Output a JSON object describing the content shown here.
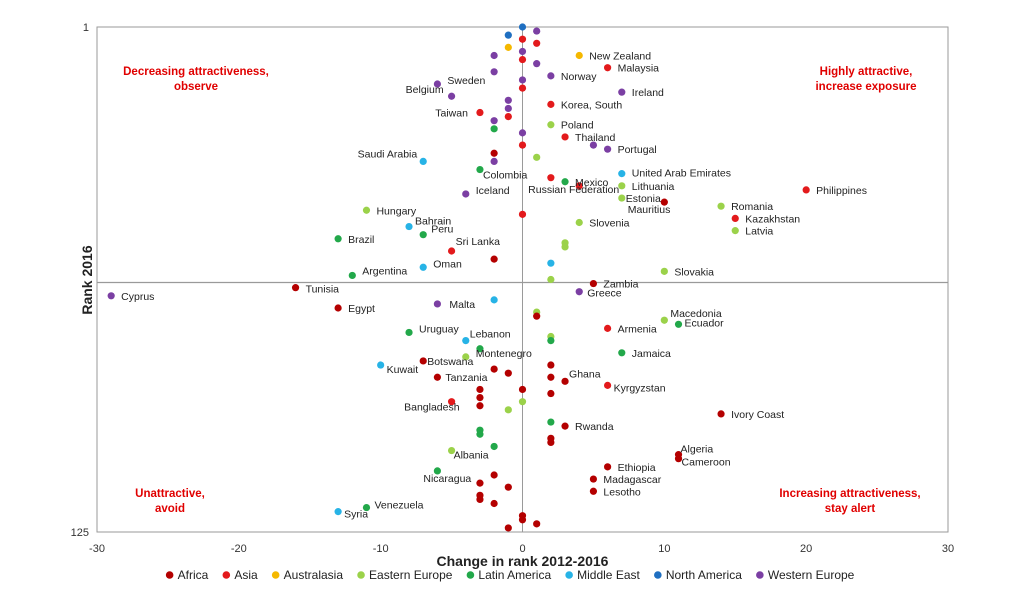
{
  "chart_data": {
    "type": "scatter",
    "xlabel": "Change in rank 2012-2016",
    "ylabel": "Rank 2016",
    "xlim": [
      -30,
      30
    ],
    "ylim": [
      1,
      125
    ],
    "y_inverted": true,
    "x_ticks": [
      "-30",
      "-20",
      "-10",
      "0",
      "10",
      "20",
      "30"
    ],
    "y_ticks": [
      "1",
      "125"
    ],
    "legend_position": "bottom",
    "quadrant_labels": [
      {
        "text": [
          "Decreasing attractiveness,",
          "observe"
        ],
        "position": "top-left"
      },
      {
        "text": [
          "Highly attractive,",
          "increase exposure"
        ],
        "position": "top-right"
      },
      {
        "text": [
          "Unattractive,",
          "avoid"
        ],
        "position": "bottom-left"
      },
      {
        "text": [
          "Increasing attractiveness,",
          "stay alert"
        ],
        "position": "bottom-right"
      }
    ],
    "series": [
      {
        "name": "Africa",
        "color": "#b40000"
      },
      {
        "name": "Asia",
        "color": "#e31a1c"
      },
      {
        "name": "Australasia",
        "color": "#f5b800"
      },
      {
        "name": "Eastern Europe",
        "color": "#9bd24a"
      },
      {
        "name": "Latin America",
        "color": "#22a84a"
      },
      {
        "name": "Middle East",
        "color": "#27b3e6"
      },
      {
        "name": "North America",
        "color": "#1f6fc1"
      },
      {
        "name": "Western Europe",
        "color": "#7b3fa3"
      }
    ],
    "points": [
      {
        "label": "New Zealand",
        "x": 4,
        "y": 8,
        "group": "Australasia"
      },
      {
        "label": "Malaysia",
        "x": 6,
        "y": 11,
        "group": "Asia"
      },
      {
        "label": "Norway",
        "x": 2,
        "y": 13,
        "group": "Western Europe"
      },
      {
        "label": "Sweden",
        "x": -6,
        "y": 15,
        "group": "Western Europe"
      },
      {
        "label": "Ireland",
        "x": 7,
        "y": 17,
        "group": "Western Europe"
      },
      {
        "label": "Belgium",
        "x": -5,
        "y": 18,
        "group": "Western Europe"
      },
      {
        "label": "Korea, South",
        "x": 2,
        "y": 20,
        "group": "Asia"
      },
      {
        "label": "Taiwan",
        "x": -3,
        "y": 22,
        "group": "Asia"
      },
      {
        "label": "Poland",
        "x": 2,
        "y": 25,
        "group": "Eastern Europe"
      },
      {
        "label": "Thailand",
        "x": 3,
        "y": 28,
        "group": "Asia"
      },
      {
        "label": "Portugal",
        "x": 6,
        "y": 31,
        "group": "Western Europe"
      },
      {
        "label": "Saudi Arabia",
        "x": -7,
        "y": 34,
        "group": "Middle East"
      },
      {
        "label": "United Arab Emirates",
        "x": 7,
        "y": 37,
        "group": "Middle East"
      },
      {
        "label": "Colombia",
        "x": -3,
        "y": 36,
        "group": "Latin America"
      },
      {
        "label": "Mexico",
        "x": 3,
        "y": 39,
        "group": "Latin America"
      },
      {
        "label": "Lithuania",
        "x": 7,
        "y": 40,
        "group": "Eastern Europe"
      },
      {
        "label": "Philippines",
        "x": 20,
        "y": 41,
        "group": "Asia"
      },
      {
        "label": "Russian Federation",
        "x": 4,
        "y": 40,
        "group": "Asia"
      },
      {
        "label": "Iceland",
        "x": -4,
        "y": 42,
        "group": "Western Europe"
      },
      {
        "label": "Estonia",
        "x": 7,
        "y": 43,
        "group": "Eastern Europe"
      },
      {
        "label": "Romania",
        "x": 14,
        "y": 45,
        "group": "Eastern Europe"
      },
      {
        "label": "Mauritius",
        "x": 10,
        "y": 44,
        "group": "Africa"
      },
      {
        "label": "Hungary",
        "x": -11,
        "y": 46,
        "group": "Eastern Europe"
      },
      {
        "label": "Kazakhstan",
        "x": 15,
        "y": 48,
        "group": "Asia"
      },
      {
        "label": "Slovenia",
        "x": 4,
        "y": 49,
        "group": "Eastern Europe"
      },
      {
        "label": "Bahrain",
        "x": -8,
        "y": 50,
        "group": "Middle East"
      },
      {
        "label": "Latvia",
        "x": 15,
        "y": 51,
        "group": "Eastern Europe"
      },
      {
        "label": "Peru",
        "x": -7,
        "y": 52,
        "group": "Latin America"
      },
      {
        "label": "Brazil",
        "x": -13,
        "y": 53,
        "group": "Latin America"
      },
      {
        "label": "Sri Lanka",
        "x": -5,
        "y": 56,
        "group": "Asia"
      },
      {
        "label": "Oman",
        "x": -7,
        "y": 60,
        "group": "Middle East"
      },
      {
        "label": "Slovakia",
        "x": 10,
        "y": 61,
        "group": "Eastern Europe"
      },
      {
        "label": "Argentina",
        "x": -12,
        "y": 62,
        "group": "Latin America"
      },
      {
        "label": "Zambia",
        "x": 5,
        "y": 64,
        "group": "Africa"
      },
      {
        "label": "Tunisia",
        "x": -16,
        "y": 65,
        "group": "Africa"
      },
      {
        "label": "Greece",
        "x": 4,
        "y": 66,
        "group": "Western Europe"
      },
      {
        "label": "Cyprus",
        "x": -29,
        "y": 67,
        "group": "Western Europe"
      },
      {
        "label": "Malta",
        "x": -6,
        "y": 69,
        "group": "Western Europe"
      },
      {
        "label": "Egypt",
        "x": -13,
        "y": 70,
        "group": "Africa"
      },
      {
        "label": "Macedonia",
        "x": 10,
        "y": 73,
        "group": "Eastern Europe"
      },
      {
        "label": "Ecuador",
        "x": 11,
        "y": 74,
        "group": "Latin America"
      },
      {
        "label": "Armenia",
        "x": 6,
        "y": 75,
        "group": "Asia"
      },
      {
        "label": "Uruguay",
        "x": -8,
        "y": 76,
        "group": "Latin America"
      },
      {
        "label": "Lebanon",
        "x": -4,
        "y": 78,
        "group": "Middle East"
      },
      {
        "label": "Jamaica",
        "x": 7,
        "y": 81,
        "group": "Latin America"
      },
      {
        "label": "Montenegro",
        "x": -4,
        "y": 82,
        "group": "Eastern Europe"
      },
      {
        "label": "Kuwait",
        "x": -10,
        "y": 84,
        "group": "Middle East"
      },
      {
        "label": "Botswana",
        "x": -7,
        "y": 83,
        "group": "Africa"
      },
      {
        "label": "Tanzania",
        "x": -6,
        "y": 87,
        "group": "Africa"
      },
      {
        "label": "Ghana",
        "x": 3,
        "y": 88,
        "group": "Africa"
      },
      {
        "label": "Kyrgyzstan",
        "x": 6,
        "y": 89,
        "group": "Asia"
      },
      {
        "label": "Bangladesh",
        "x": -5,
        "y": 93,
        "group": "Asia"
      },
      {
        "label": "Ivory Coast",
        "x": 14,
        "y": 96,
        "group": "Africa"
      },
      {
        "label": "Rwanda",
        "x": 3,
        "y": 99,
        "group": "Africa"
      },
      {
        "label": "Albania",
        "x": -5,
        "y": 105,
        "group": "Eastern Europe"
      },
      {
        "label": "Algeria",
        "x": 11,
        "y": 106,
        "group": "Africa"
      },
      {
        "label": "Ethiopia",
        "x": 6,
        "y": 109,
        "group": "Africa"
      },
      {
        "label": "Cameroon",
        "x": 11,
        "y": 107,
        "group": "Africa"
      },
      {
        "label": "Nicaragua",
        "x": -6,
        "y": 110,
        "group": "Latin America"
      },
      {
        "label": "Madagascar",
        "x": 5,
        "y": 112,
        "group": "Africa"
      },
      {
        "label": "Lesotho",
        "x": 5,
        "y": 115,
        "group": "Africa"
      },
      {
        "label": "Venezuela",
        "x": -11,
        "y": 119,
        "group": "Latin America"
      },
      {
        "label": "Syria",
        "x": -13,
        "y": 120,
        "group": "Middle East"
      },
      {
        "label": "",
        "x": 0,
        "y": 1,
        "group": "North America"
      },
      {
        "label": "",
        "x": 1,
        "y": 2,
        "group": "Western Europe"
      },
      {
        "label": "",
        "x": -1,
        "y": 3,
        "group": "North America"
      },
      {
        "label": "",
        "x": 0,
        "y": 4,
        "group": "Asia"
      },
      {
        "label": "",
        "x": 1,
        "y": 5,
        "group": "Asia"
      },
      {
        "label": "",
        "x": -1,
        "y": 6,
        "group": "Australasia"
      },
      {
        "label": "",
        "x": 0,
        "y": 7,
        "group": "Western Europe"
      },
      {
        "label": "",
        "x": -2,
        "y": 8,
        "group": "Western Europe"
      },
      {
        "label": "",
        "x": 0,
        "y": 9,
        "group": "Asia"
      },
      {
        "label": "",
        "x": 1,
        "y": 10,
        "group": "Western Europe"
      },
      {
        "label": "",
        "x": -2,
        "y": 12,
        "group": "Western Europe"
      },
      {
        "label": "",
        "x": 0,
        "y": 14,
        "group": "Western Europe"
      },
      {
        "label": "",
        "x": 0,
        "y": 16,
        "group": "Asia"
      },
      {
        "label": "",
        "x": -1,
        "y": 19,
        "group": "Western Europe"
      },
      {
        "label": "",
        "x": -1,
        "y": 21,
        "group": "Western Europe"
      },
      {
        "label": "",
        "x": -2,
        "y": 24,
        "group": "Western Europe"
      },
      {
        "label": "",
        "x": -1,
        "y": 23,
        "group": "Asia"
      },
      {
        "label": "",
        "x": -2,
        "y": 26,
        "group": "Latin America"
      },
      {
        "label": "",
        "x": 0,
        "y": 27,
        "group": "Western Europe"
      },
      {
        "label": "",
        "x": 0,
        "y": 30,
        "group": "Asia"
      },
      {
        "label": "",
        "x": 5,
        "y": 30,
        "group": "Western Europe"
      },
      {
        "label": "",
        "x": -2,
        "y": 32,
        "group": "Africa"
      },
      {
        "label": "",
        "x": -2,
        "y": 34,
        "group": "Western Europe"
      },
      {
        "label": "",
        "x": 1,
        "y": 33,
        "group": "Eastern Europe"
      },
      {
        "label": "",
        "x": 2,
        "y": 38,
        "group": "Asia"
      },
      {
        "label": "",
        "x": 0,
        "y": 47,
        "group": "Asia"
      },
      {
        "label": "",
        "x": 3,
        "y": 54,
        "group": "Eastern Europe"
      },
      {
        "label": "",
        "x": 3,
        "y": 55,
        "group": "Eastern Europe"
      },
      {
        "label": "",
        "x": -2,
        "y": 58,
        "group": "Africa"
      },
      {
        "label": "",
        "x": 2,
        "y": 59,
        "group": "Middle East"
      },
      {
        "label": "",
        "x": 2,
        "y": 63,
        "group": "Eastern Europe"
      },
      {
        "label": "",
        "x": -2,
        "y": 68,
        "group": "Middle East"
      },
      {
        "label": "",
        "x": 1,
        "y": 71,
        "group": "Eastern Europe"
      },
      {
        "label": "",
        "x": 1,
        "y": 72,
        "group": "Africa"
      },
      {
        "label": "",
        "x": 2,
        "y": 77,
        "group": "Eastern Europe"
      },
      {
        "label": "",
        "x": 2,
        "y": 78,
        "group": "Latin America"
      },
      {
        "label": "",
        "x": -3,
        "y": 80,
        "group": "Latin America"
      },
      {
        "label": "",
        "x": 2,
        "y": 84,
        "group": "Africa"
      },
      {
        "label": "",
        "x": -2,
        "y": 85,
        "group": "Africa"
      },
      {
        "label": "",
        "x": -1,
        "y": 86,
        "group": "Africa"
      },
      {
        "label": "",
        "x": 2,
        "y": 87,
        "group": "Africa"
      },
      {
        "label": "",
        "x": -3,
        "y": 90,
        "group": "Africa"
      },
      {
        "label": "",
        "x": 0,
        "y": 90,
        "group": "Africa"
      },
      {
        "label": "",
        "x": 2,
        "y": 91,
        "group": "Africa"
      },
      {
        "label": "",
        "x": -3,
        "y": 92,
        "group": "Africa"
      },
      {
        "label": "",
        "x": 0,
        "y": 93,
        "group": "Eastern Europe"
      },
      {
        "label": "",
        "x": -3,
        "y": 94,
        "group": "Africa"
      },
      {
        "label": "",
        "x": -1,
        "y": 95,
        "group": "Eastern Europe"
      },
      {
        "label": "",
        "x": 2,
        "y": 98,
        "group": "Latin America"
      },
      {
        "label": "",
        "x": -3,
        "y": 100,
        "group": "Latin America"
      },
      {
        "label": "",
        "x": -3,
        "y": 101,
        "group": "Latin America"
      },
      {
        "label": "",
        "x": 2,
        "y": 102,
        "group": "Africa"
      },
      {
        "label": "",
        "x": 2,
        "y": 103,
        "group": "Africa"
      },
      {
        "label": "",
        "x": -2,
        "y": 104,
        "group": "Latin America"
      },
      {
        "label": "",
        "x": -2,
        "y": 111,
        "group": "Africa"
      },
      {
        "label": "",
        "x": -3,
        "y": 113,
        "group": "Africa"
      },
      {
        "label": "",
        "x": -1,
        "y": 114,
        "group": "Africa"
      },
      {
        "label": "",
        "x": -3,
        "y": 116,
        "group": "Africa"
      },
      {
        "label": "",
        "x": -3,
        "y": 117,
        "group": "Africa"
      },
      {
        "label": "",
        "x": -2,
        "y": 118,
        "group": "Africa"
      },
      {
        "label": "",
        "x": 0,
        "y": 121,
        "group": "Africa"
      },
      {
        "label": "",
        "x": 0,
        "y": 122,
        "group": "Africa"
      },
      {
        "label": "",
        "x": -1,
        "y": 124,
        "group": "Africa"
      },
      {
        "label": "",
        "x": 1,
        "y": 123,
        "group": "Africa"
      }
    ]
  }
}
